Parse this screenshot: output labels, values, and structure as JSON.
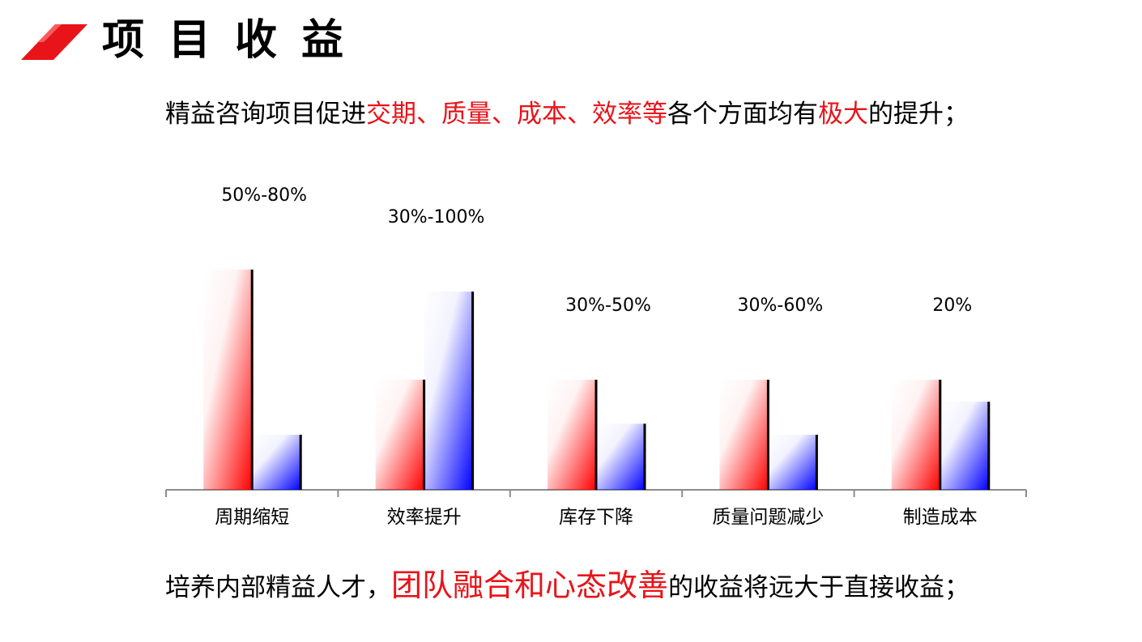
{
  "header": {
    "title": "项目收益",
    "logo_icon": "red-parallelogram-icon"
  },
  "intro": {
    "parts": [
      {
        "text": "精益咨询项目促进",
        "highlight": false
      },
      {
        "text": "交期、质量、成本、效率等",
        "highlight": true
      },
      {
        "text": "各个方面均有",
        "highlight": false
      },
      {
        "text": "极大",
        "highlight": true
      },
      {
        "text": "的提升；",
        "highlight": false
      }
    ]
  },
  "chart_data": {
    "type": "bar",
    "categories": [
      "周期缩短",
      "效率提升",
      "库存下降",
      "质量问题减少",
      "制造成本"
    ],
    "improvement_labels": [
      "50%-80%",
      "30%-100%",
      "30%-50%",
      "30%-60%",
      "20%"
    ],
    "series": [
      {
        "values": [
          100,
          50,
          50,
          50,
          50
        ],
        "color": "#ff0000"
      },
      {
        "values": [
          25,
          90,
          30,
          25,
          40
        ],
        "color": "#0000ff"
      }
    ],
    "ylim": [
      0,
      100
    ],
    "xlabel": "",
    "ylabel": "",
    "grid": false,
    "legend": "none"
  },
  "outro": {
    "parts": [
      {
        "text": "培养内部精益人才，",
        "highlight": false
      },
      {
        "text": "团队融合和心态改善",
        "highlight": true
      },
      {
        "text": "的收益将远大于直接收益；",
        "highlight": false
      }
    ]
  }
}
